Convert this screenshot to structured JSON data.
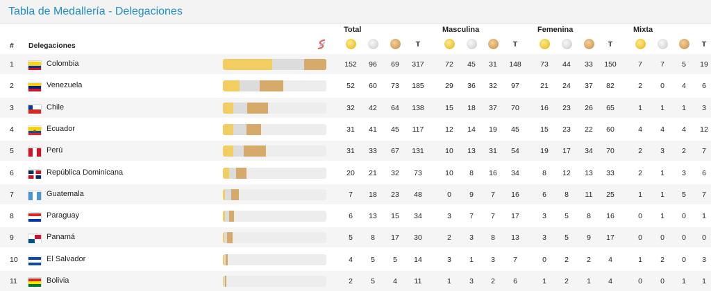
{
  "title": "Tabla de Medallería - Delegaciones",
  "headers": {
    "rank": "#",
    "delegation": "Delegaciones",
    "groups": [
      "Total",
      "Masculina",
      "Femenina",
      "Mixta"
    ],
    "total_label": "T"
  },
  "colors": {
    "accent": "#1e8ec9",
    "gold": "#f1cd62",
    "silver": "#dcdcdc",
    "bronze": "#d6aa6b"
  },
  "rows": [
    {
      "rank": "1",
      "name": "Colombia",
      "flag": "colombia",
      "total": [
        "152",
        "96",
        "69",
        "317"
      ],
      "masc": [
        "72",
        "45",
        "31",
        "148"
      ],
      "fem": [
        "73",
        "44",
        "33",
        "150"
      ],
      "mix": [
        "7",
        "7",
        "5",
        "19"
      ]
    },
    {
      "rank": "2",
      "name": "Venezuela",
      "flag": "venezuela",
      "total": [
        "52",
        "60",
        "73",
        "185"
      ],
      "masc": [
        "29",
        "36",
        "32",
        "97"
      ],
      "fem": [
        "21",
        "24",
        "37",
        "82"
      ],
      "mix": [
        "2",
        "0",
        "4",
        "6"
      ]
    },
    {
      "rank": "3",
      "name": "Chile",
      "flag": "chile",
      "total": [
        "32",
        "42",
        "64",
        "138"
      ],
      "masc": [
        "15",
        "18",
        "37",
        "70"
      ],
      "fem": [
        "16",
        "23",
        "26",
        "65"
      ],
      "mix": [
        "1",
        "1",
        "1",
        "3"
      ]
    },
    {
      "rank": "4",
      "name": "Ecuador",
      "flag": "ecuador",
      "total": [
        "31",
        "41",
        "45",
        "117"
      ],
      "masc": [
        "12",
        "14",
        "19",
        "45"
      ],
      "fem": [
        "15",
        "23",
        "22",
        "60"
      ],
      "mix": [
        "4",
        "4",
        "4",
        "12"
      ]
    },
    {
      "rank": "5",
      "name": "Perú",
      "flag": "peru",
      "total": [
        "31",
        "33",
        "67",
        "131"
      ],
      "masc": [
        "10",
        "13",
        "31",
        "54"
      ],
      "fem": [
        "19",
        "17",
        "34",
        "70"
      ],
      "mix": [
        "2",
        "3",
        "2",
        "7"
      ]
    },
    {
      "rank": "6",
      "name": "República Dominicana",
      "flag": "dominicana",
      "total": [
        "20",
        "21",
        "32",
        "73"
      ],
      "masc": [
        "10",
        "8",
        "16",
        "34"
      ],
      "fem": [
        "8",
        "12",
        "13",
        "33"
      ],
      "mix": [
        "2",
        "1",
        "3",
        "6"
      ]
    },
    {
      "rank": "7",
      "name": "Guatemala",
      "flag": "guatemala",
      "total": [
        "7",
        "18",
        "23",
        "48"
      ],
      "masc": [
        "0",
        "9",
        "7",
        "16"
      ],
      "fem": [
        "6",
        "8",
        "11",
        "25"
      ],
      "mix": [
        "1",
        "1",
        "5",
        "7"
      ]
    },
    {
      "rank": "8",
      "name": "Paraguay",
      "flag": "paraguay",
      "total": [
        "6",
        "13",
        "15",
        "34"
      ],
      "masc": [
        "3",
        "7",
        "7",
        "17"
      ],
      "fem": [
        "3",
        "5",
        "8",
        "16"
      ],
      "mix": [
        "0",
        "1",
        "0",
        "1"
      ]
    },
    {
      "rank": "9",
      "name": "Panamá",
      "flag": "panama",
      "total": [
        "5",
        "8",
        "17",
        "30"
      ],
      "masc": [
        "2",
        "3",
        "8",
        "13"
      ],
      "fem": [
        "3",
        "5",
        "9",
        "17"
      ],
      "mix": [
        "0",
        "0",
        "0",
        "0"
      ]
    },
    {
      "rank": "10",
      "name": "El Salvador",
      "flag": "elsalvador",
      "total": [
        "4",
        "5",
        "5",
        "14"
      ],
      "masc": [
        "3",
        "1",
        "3",
        "7"
      ],
      "fem": [
        "0",
        "2",
        "2",
        "4"
      ],
      "mix": [
        "1",
        "2",
        "0",
        "3"
      ]
    },
    {
      "rank": "11",
      "name": "Bolivia",
      "flag": "bolivia",
      "total": [
        "2",
        "5",
        "4",
        "11"
      ],
      "masc": [
        "1",
        "3",
        "2",
        "6"
      ],
      "fem": [
        "1",
        "2",
        "1",
        "4"
      ],
      "mix": [
        "0",
        "0",
        "1",
        "1"
      ]
    }
  ]
}
